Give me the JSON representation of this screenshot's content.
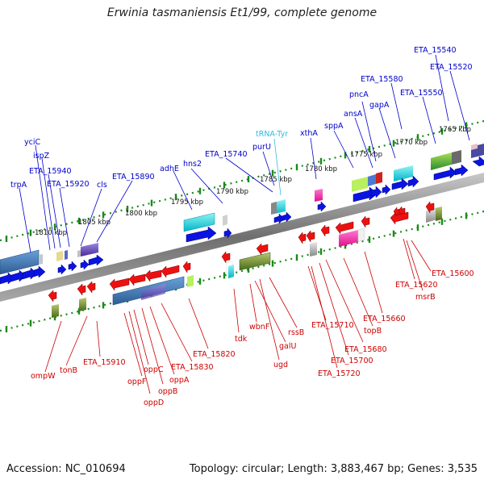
{
  "title": "Erwinia tasmaniensis Et1/99, complete genome",
  "accession": "Accession: NC_010694",
  "summary": "Topology: circular; Length: 3,883,467 bp; Genes: 3,535",
  "colors": {
    "forward_label": "#0000cc",
    "reverse_label": "#cc0000",
    "trna_label": "#33bbdd",
    "backbone": "#8a8a8a",
    "tick": "#1a8a1a"
  },
  "kbp_ticks": [
    "1810 kbp",
    "1805 kbp",
    "1800 kbp",
    "1795 kbp",
    "1790 kbp",
    "1785 kbp",
    "1780 kbp",
    "1775 kbp",
    "1770 kbp",
    "1765 kbp"
  ],
  "forward_genes": [
    "trpA",
    "yciC",
    "ispZ",
    "ETA_15940",
    "ETA_15920",
    "cls",
    "ETA_15890",
    "adhE",
    "hns2",
    "ETA_15740",
    "purU",
    "xthA",
    "sppA",
    "ansA",
    "pncA",
    "gapA",
    "ETA_15580",
    "ETA_15550",
    "ETA_15540",
    "ETA_15520"
  ],
  "trna_genes": [
    "tRNA-Tyr"
  ],
  "reverse_genes": [
    "ompW",
    "tonB",
    "ETA_15910",
    "oppF",
    "oppD",
    "oppC",
    "oppB",
    "oppA",
    "ETA_15830",
    "ETA_15820",
    "tdk",
    "wbnF",
    "galU",
    "rssB",
    "ugd",
    "ETA_15710",
    "ETA_15720",
    "ETA_15700",
    "ETA_15680",
    "topB",
    "ETA_15660",
    "ETA_15620",
    "msrB",
    "ETA_15600"
  ]
}
